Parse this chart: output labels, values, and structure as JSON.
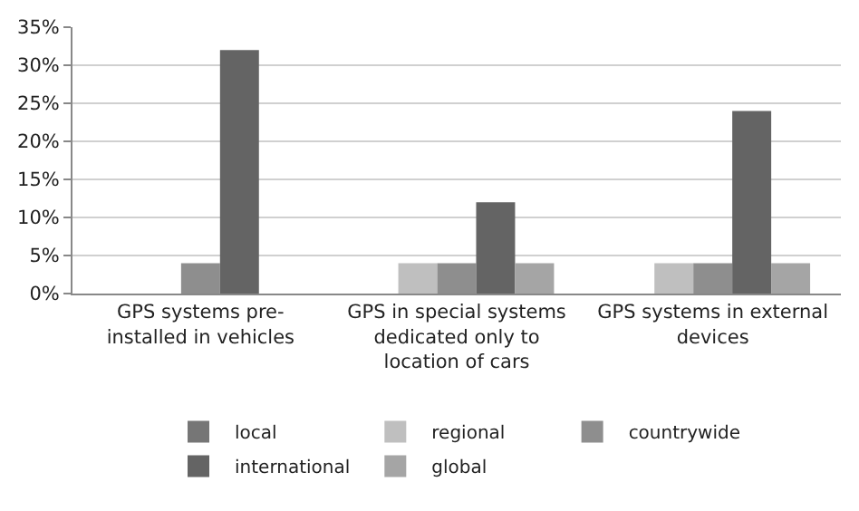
{
  "chart_data": {
    "type": "bar",
    "categories": [
      "GPS systems pre-installed in vehicles",
      "GPS in special systems dedicated only to location of cars",
      "GPS systems in external devices"
    ],
    "series": [
      {
        "name": "local",
        "color": "#767676",
        "values": [
          0,
          0,
          0
        ]
      },
      {
        "name": "regional",
        "color": "#bfbfbf",
        "values": [
          0,
          4,
          4
        ]
      },
      {
        "name": "countrywide",
        "color": "#8e8e8e",
        "values": [
          4,
          4,
          4
        ]
      },
      {
        "name": "international",
        "color": "#646464",
        "values": [
          32,
          12,
          24
        ]
      },
      {
        "name": "global",
        "color": "#a5a5a5",
        "values": [
          0,
          4,
          4
        ]
      }
    ],
    "ylim": [
      0,
      35
    ],
    "yticks": [
      {
        "value": 0,
        "label": "0%"
      },
      {
        "value": 5,
        "label": "5%"
      },
      {
        "value": 10,
        "label": "10%"
      },
      {
        "value": 15,
        "label": "15%"
      },
      {
        "value": 20,
        "label": "20%"
      },
      {
        "value": 25,
        "label": "25%"
      },
      {
        "value": 30,
        "label": "30%"
      },
      {
        "value": 35,
        "label": "35%"
      }
    ],
    "grid": "y",
    "legend": "bottom"
  }
}
